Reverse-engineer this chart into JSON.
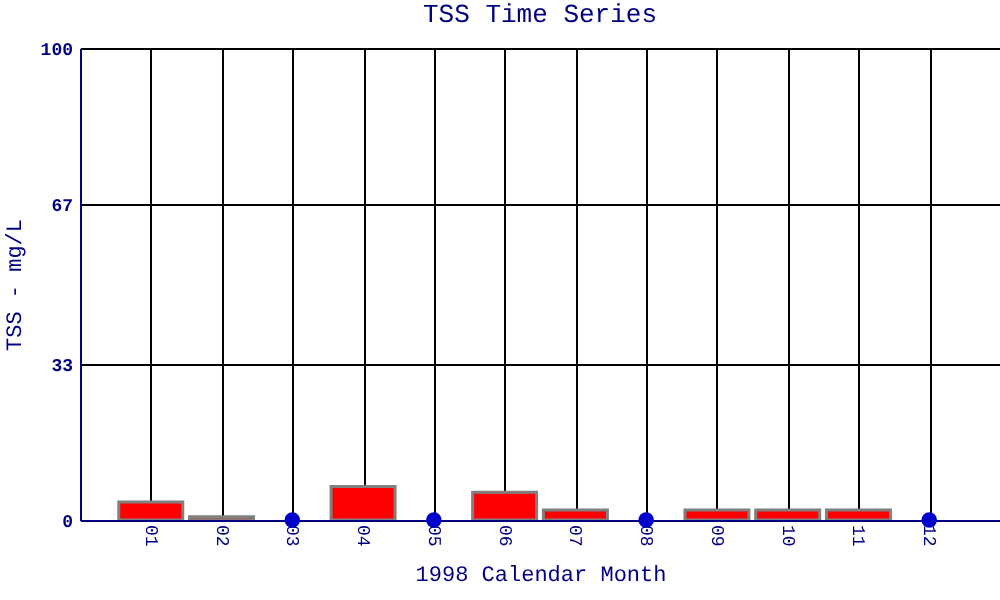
{
  "chart_data": {
    "type": "bar",
    "title": "TSS Time Series",
    "xlabel": "1998 Calendar Month",
    "ylabel": "TSS - mg/L",
    "x": [
      1,
      2,
      3,
      4,
      5,
      6,
      7,
      8,
      9,
      10,
      11,
      12
    ],
    "series": [
      {
        "color": "#ff0000",
        "values": [
          3.8,
          0.7,
          null,
          7.1,
          null,
          5.9,
          2.1,
          null,
          2.1,
          2.1,
          2.1,
          null
        ]
      },
      {
        "type": "scatter",
        "color": "#0000cc",
        "marker": "circle",
        "values": [
          null,
          null,
          0,
          null,
          0,
          null,
          null,
          0,
          null,
          null,
          null,
          0
        ]
      }
    ],
    "xlim": [
      0,
      13
    ],
    "xticks": [
      {
        "value": 1,
        "label": "01"
      },
      {
        "value": 2,
        "label": "02"
      },
      {
        "value": 3,
        "label": "03"
      },
      {
        "value": 4,
        "label": "04"
      },
      {
        "value": 5,
        "label": "05"
      },
      {
        "value": 6,
        "label": "06"
      },
      {
        "value": 7,
        "label": "07"
      },
      {
        "value": 8,
        "label": "08"
      },
      {
        "value": 9,
        "label": "09"
      },
      {
        "value": 10,
        "label": "10"
      },
      {
        "value": 11,
        "label": "11"
      },
      {
        "value": 12,
        "label": "12"
      }
    ],
    "ylim": [
      0,
      100
    ],
    "yticks": [
      0,
      33,
      67,
      100
    ],
    "grid": true
  }
}
